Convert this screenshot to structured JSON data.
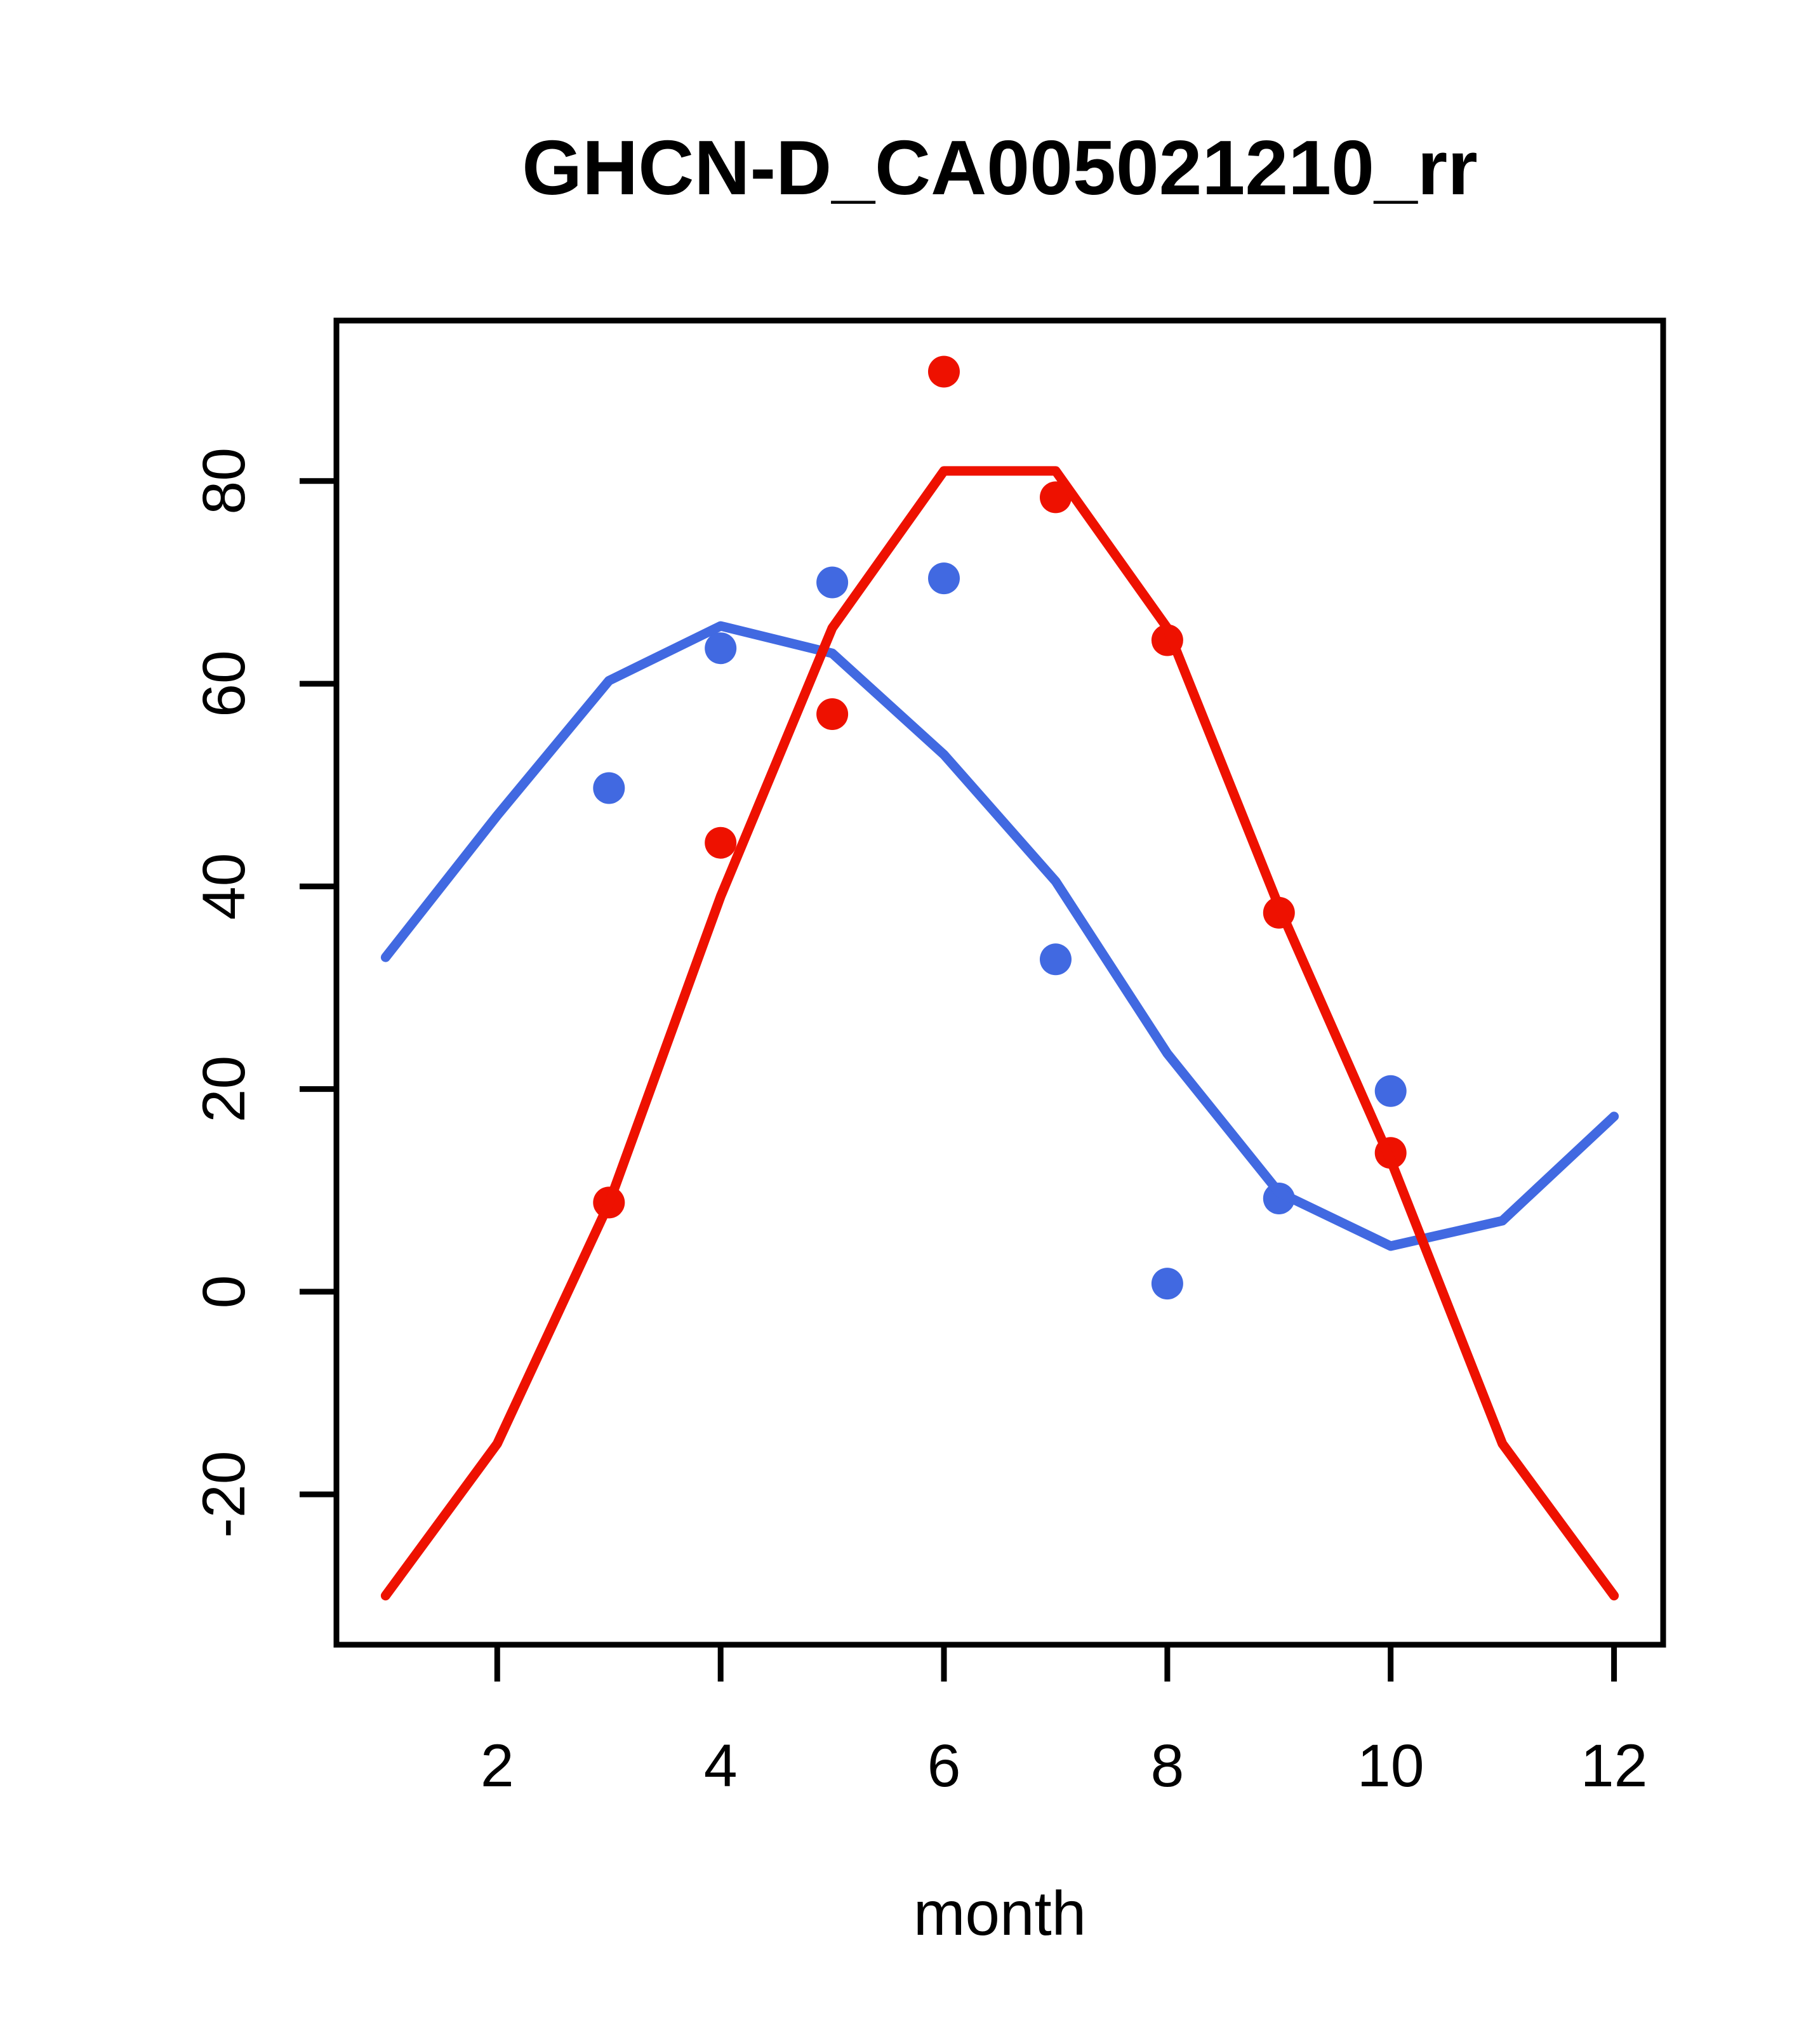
{
  "chart_data": {
    "type": "line",
    "title": "GHCN-D_CA005021210_rr",
    "xlabel": "month",
    "ylabel": "",
    "grid": false,
    "legend": null,
    "xlim": [
      0.56,
      12.44
    ],
    "ylim": [
      -34.84,
      95.84
    ],
    "x_ticks": [
      2,
      4,
      6,
      8,
      10,
      12
    ],
    "y_ticks": [
      -20,
      0,
      20,
      40,
      60,
      80
    ],
    "series": [
      {
        "name": "blue-points",
        "kind": "scatter",
        "color": "#4169e1",
        "x": [
          3,
          4,
          5,
          6,
          7,
          8,
          9,
          10
        ],
        "y": [
          49.7,
          63.5,
          70.0,
          70.4,
          32.8,
          0.8,
          9.2,
          19.8
        ]
      },
      {
        "name": "blue-fit-line",
        "kind": "line",
        "color": "#4169e1",
        "x": [
          1,
          2,
          3,
          4,
          5,
          6,
          7,
          8,
          9,
          10,
          11,
          12
        ],
        "y": [
          33.0,
          47.0,
          60.3,
          65.7,
          63.0,
          53.0,
          40.5,
          23.5,
          9.8,
          4.5,
          7.0,
          17.3
        ]
      },
      {
        "name": "red-points",
        "kind": "scatter",
        "color": "#ee1100",
        "x": [
          3,
          4,
          5,
          6,
          7,
          8,
          9,
          10
        ],
        "y": [
          8.8,
          44.3,
          57.0,
          90.8,
          78.4,
          64.3,
          37.4,
          13.7
        ]
      },
      {
        "name": "red-fit-line",
        "kind": "line",
        "color": "#ee1100",
        "x": [
          1,
          2,
          3,
          4,
          5,
          6,
          7,
          8,
          9,
          10,
          11,
          12
        ],
        "y": [
          -30.0,
          -15.0,
          8.7,
          39.0,
          65.5,
          81.0,
          81.0,
          65.5,
          38.0,
          13.0,
          -15.0,
          -30.0
        ]
      }
    ],
    "colors": {
      "red": "#ee1100",
      "blue": "#4169e1",
      "axis": "#000000",
      "background": "#ffffff"
    }
  }
}
